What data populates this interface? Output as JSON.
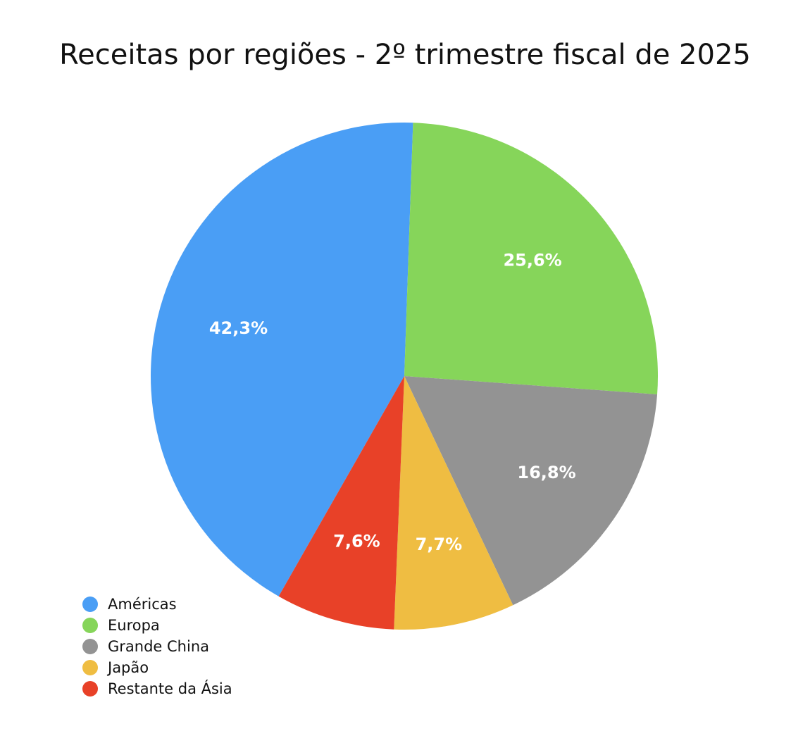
{
  "chart_data": {
    "type": "pie",
    "title": "Receitas por regiões - 2º trimestre fiscal de 2025",
    "categories": [
      "Américas",
      "Europa",
      "Grande China",
      "Japão",
      "Restante da Ásia"
    ],
    "values": [
      42.3,
      25.6,
      16.8,
      7.7,
      7.6
    ],
    "value_labels": [
      "42,3%",
      "25,6%",
      "16,8%",
      "7,7%",
      "7,6%"
    ],
    "colors": [
      "#4a9ef5",
      "#86d55a",
      "#939393",
      "#efbd42",
      "#e84128"
    ],
    "legend": "bottom-left"
  }
}
